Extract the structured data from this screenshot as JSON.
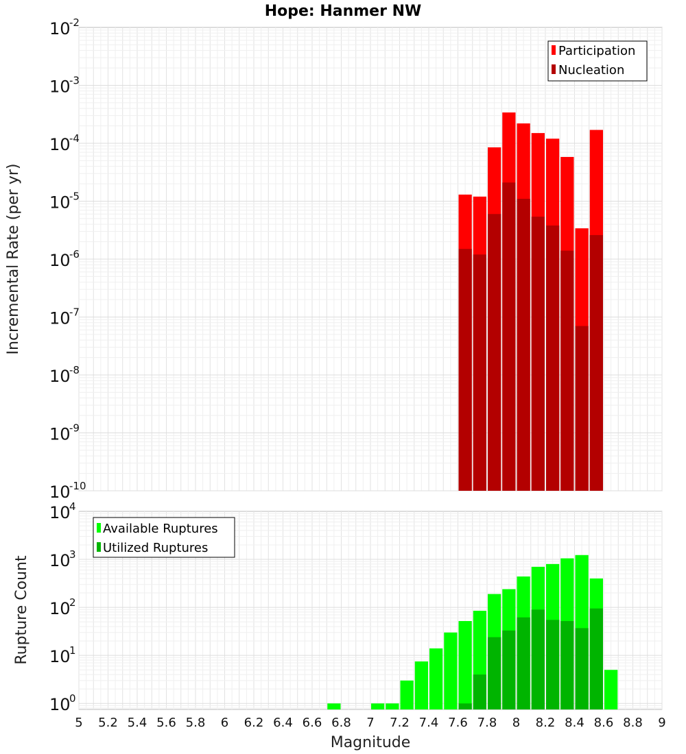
{
  "chart_data": [
    {
      "type": "bar",
      "title": "Hope: Hanmer NW",
      "xlabel": "",
      "ylabel": "Incremental Rate (per yr)",
      "yscale": "log",
      "ylim": [
        1e-10,
        0.01
      ],
      "xlim": [
        5,
        9
      ],
      "legend_position": "top-right",
      "series": [
        {
          "name": "Participation",
          "color": "#ff0000",
          "x": [
            7.65,
            7.75,
            7.85,
            7.95,
            8.05,
            8.15,
            8.25,
            8.35,
            8.45,
            8.55
          ],
          "values": [
            1.3e-05,
            1.2e-05,
            8.5e-05,
            0.00034,
            0.00022,
            0.00015,
            0.00012,
            5.8e-05,
            3.4e-06,
            0.00017
          ]
        },
        {
          "name": "Nucleation",
          "color": "#b30000",
          "x": [
            7.65,
            7.75,
            7.85,
            7.95,
            8.05,
            8.15,
            8.25,
            8.35,
            8.45,
            8.55
          ],
          "values": [
            1.5e-06,
            1.2e-06,
            6e-06,
            2.1e-05,
            1.1e-05,
            5.4e-06,
            3.8e-06,
            1.4e-06,
            7e-08,
            2.6e-06
          ]
        }
      ]
    },
    {
      "type": "bar",
      "title": "",
      "xlabel": "Magnitude",
      "ylabel": "Rupture Count",
      "yscale": "log",
      "ylim": [
        0.75,
        10000
      ],
      "xlim": [
        5,
        9
      ],
      "legend_position": "top-left",
      "xticks": [
        "5",
        "5.2",
        "5.4",
        "5.6",
        "5.8",
        "6",
        "6.2",
        "6.4",
        "6.6",
        "6.8",
        "7",
        "7.2",
        "7.4",
        "7.6",
        "7.8",
        "8",
        "8.2",
        "8.4",
        "8.6",
        "8.8",
        "9"
      ],
      "series": [
        {
          "name": "Available Ruptures",
          "color": "#00ff00",
          "x": [
            6.75,
            7.05,
            7.15,
            7.25,
            7.35,
            7.45,
            7.55,
            7.65,
            7.75,
            7.85,
            7.95,
            8.05,
            8.15,
            8.25,
            8.35,
            8.45,
            8.55,
            8.65
          ],
          "values": [
            1,
            1,
            1,
            3,
            7.5,
            14,
            30,
            52,
            85,
            190,
            240,
            440,
            700,
            800,
            1050,
            1230,
            400,
            5
          ]
        },
        {
          "name": "Utilized Ruptures",
          "color": "#00b400",
          "x": [
            7.65,
            7.75,
            7.85,
            7.95,
            8.05,
            8.15,
            8.25,
            8.35,
            8.45,
            8.55
          ],
          "values": [
            1,
            4,
            24,
            33,
            62,
            90,
            55,
            52,
            37,
            95
          ]
        }
      ]
    }
  ]
}
